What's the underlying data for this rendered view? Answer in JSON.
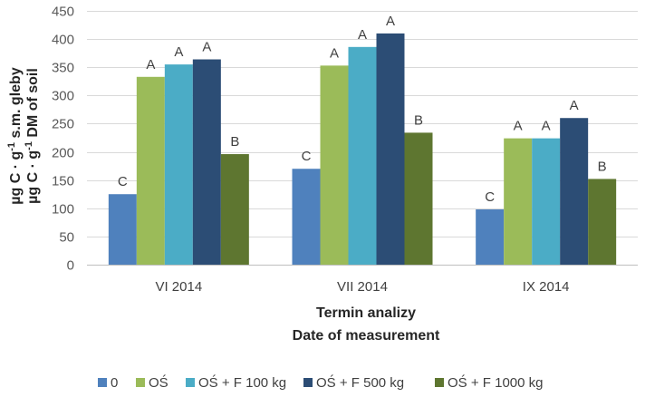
{
  "chart_data": {
    "type": "bar",
    "categories": [
      "VI 2014",
      "VII 2014",
      "IX 2014"
    ],
    "series": [
      {
        "name": "0",
        "color": "#4f81bd",
        "values": [
          125,
          170,
          98
        ],
        "labels": [
          "C",
          "C",
          "C"
        ]
      },
      {
        "name": "OŚ",
        "color": "#9bbb59",
        "values": [
          333,
          353,
          224
        ],
        "labels": [
          "A",
          "A",
          "A"
        ]
      },
      {
        "name": "OŚ + F 100 kg",
        "color": "#4bacc6",
        "values": [
          355,
          386,
          224
        ],
        "labels": [
          "A",
          "A",
          "A"
        ]
      },
      {
        "name": "OŚ + F 500 kg",
        "color": "#2c4d75",
        "values": [
          364,
          410,
          260
        ],
        "labels": [
          "A",
          "A",
          "A"
        ]
      },
      {
        "name": "OŚ + F 1000 kg",
        "color": "#5e7630",
        "values": [
          196,
          234,
          152
        ],
        "labels": [
          "B",
          "B",
          "B"
        ]
      }
    ],
    "ylim": [
      0,
      450
    ],
    "yticks": [
      0,
      50,
      100,
      150,
      200,
      250,
      300,
      350,
      400,
      450
    ],
    "grid": true,
    "xlabel": [
      "Termin analizy",
      "Date of measurement"
    ],
    "ylabel_line1": {
      "main": "µg C · g",
      "sup": "-1",
      "rest": " s.m. gleby"
    },
    "ylabel_line2": {
      "main": "µg C · g",
      "sup": "-1",
      "rest": " DM of soil"
    },
    "legend_position": "bottom"
  }
}
